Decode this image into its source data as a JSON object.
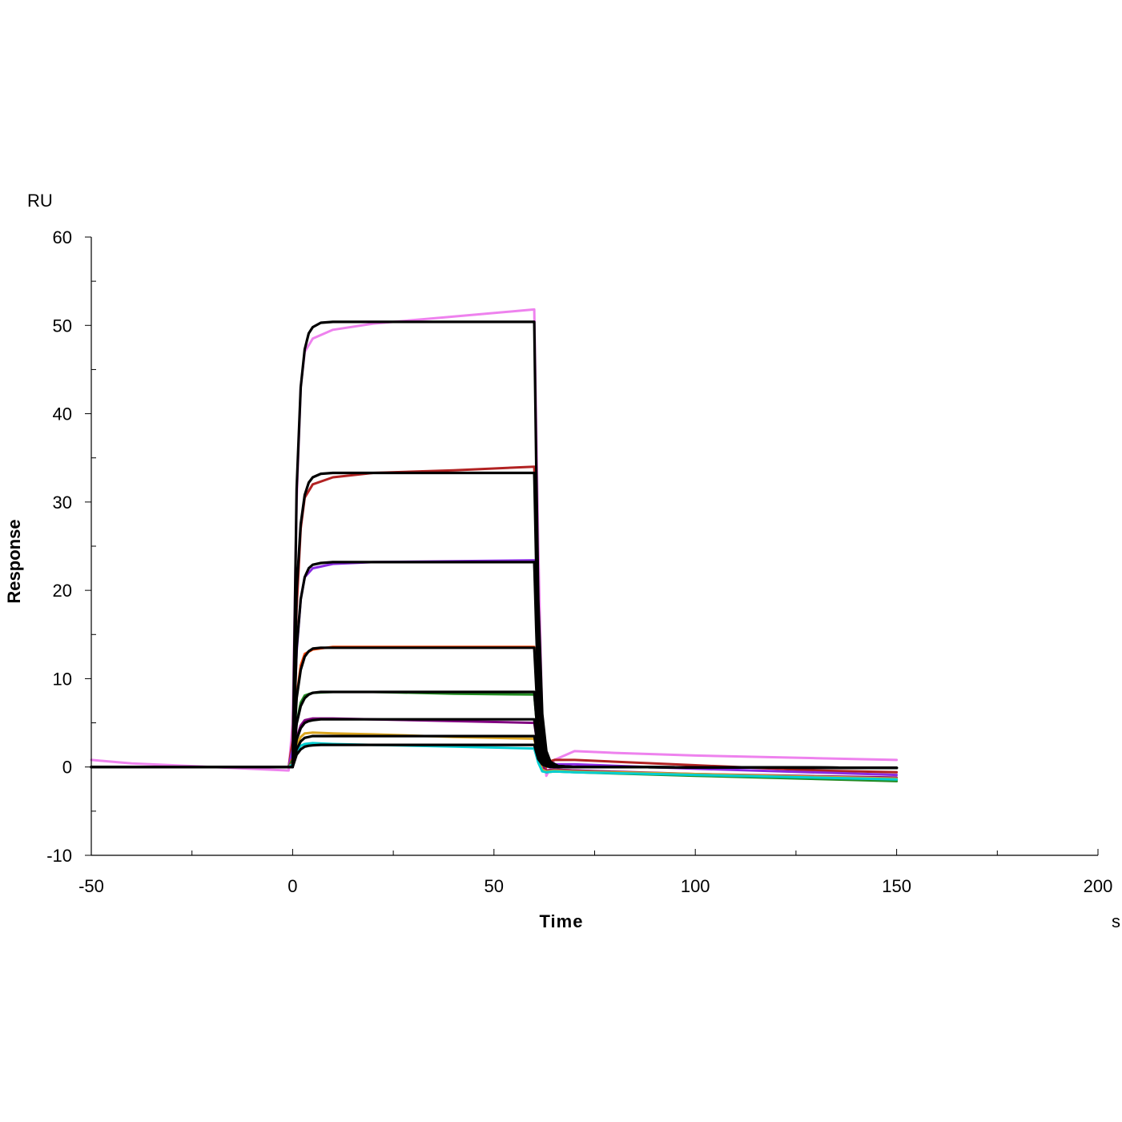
{
  "chart_data": {
    "type": "line",
    "title": "",
    "xlabel": "Time",
    "ylabel": "Response",
    "x_unit": "s",
    "y_unit": "RU",
    "xlim": [
      -50,
      200
    ],
    "ylim": [
      -10,
      60
    ],
    "x_ticks": [
      -50,
      0,
      50,
      100,
      150,
      200
    ],
    "y_ticks": [
      -10,
      0,
      10,
      20,
      30,
      40,
      50,
      60
    ],
    "x_minor_step": 25,
    "y_minor_step": 5,
    "grid": false,
    "legend": "none",
    "series": [
      {
        "color": "#ee82ee",
        "kind": "measured",
        "x": [
          -50,
          -40,
          -20,
          -1,
          0,
          1,
          2,
          3,
          5,
          10,
          20,
          40,
          60,
          61,
          62,
          63,
          65,
          70,
          80,
          100,
          130,
          150
        ],
        "y": [
          0.8,
          0.4,
          0.0,
          -0.4,
          5.0,
          30.0,
          43.0,
          47.0,
          48.5,
          49.5,
          50.2,
          51.0,
          51.8,
          25.0,
          5.0,
          -1.0,
          0.8,
          1.8,
          1.6,
          1.3,
          1.0,
          0.8
        ]
      },
      {
        "color": "#b22222",
        "kind": "measured",
        "x": [
          -50,
          -1,
          0,
          1,
          2,
          3,
          5,
          10,
          20,
          40,
          60,
          61,
          62,
          63,
          65,
          70,
          80,
          100,
          130,
          150
        ],
        "y": [
          0,
          0,
          3.0,
          18.0,
          27.0,
          30.5,
          32.0,
          32.8,
          33.3,
          33.6,
          34.0,
          16.0,
          3.0,
          0.5,
          0.8,
          0.8,
          0.6,
          0.2,
          -0.4,
          -0.6
        ]
      },
      {
        "color": "#8a2be2",
        "kind": "measured",
        "x": [
          -50,
          -1,
          0,
          1,
          2,
          3,
          5,
          10,
          20,
          40,
          60,
          61,
          62,
          63,
          65,
          70,
          100,
          150
        ],
        "y": [
          0,
          0,
          2.0,
          13.0,
          19.0,
          21.5,
          22.5,
          23.0,
          23.2,
          23.3,
          23.4,
          10.0,
          2.0,
          0.0,
          0.3,
          0.3,
          -0.2,
          -0.9
        ]
      },
      {
        "color": "#ff4500",
        "kind": "measured",
        "x": [
          -50,
          -1,
          0,
          1,
          2,
          3,
          5,
          10,
          20,
          40,
          60,
          61,
          62,
          63,
          65,
          70,
          100,
          150
        ],
        "y": [
          0,
          0,
          1.0,
          8.0,
          11.5,
          12.8,
          13.3,
          13.6,
          13.6,
          13.6,
          13.6,
          6.0,
          1.0,
          -0.4,
          -0.3,
          -0.4,
          -0.9,
          -1.3
        ]
      },
      {
        "color": "#228b22",
        "kind": "measured",
        "x": [
          -50,
          -1,
          0,
          1,
          2,
          3,
          5,
          10,
          20,
          40,
          60,
          61,
          62,
          63,
          65,
          70,
          100,
          150
        ],
        "y": [
          0,
          0,
          0.8,
          5.0,
          7.3,
          8.1,
          8.4,
          8.5,
          8.5,
          8.3,
          8.2,
          3.0,
          0.2,
          -0.6,
          -0.5,
          -0.6,
          -1.0,
          -1.6
        ]
      },
      {
        "color": "#800080",
        "kind": "measured",
        "x": [
          -50,
          -1,
          0,
          1,
          2,
          3,
          5,
          10,
          20,
          40,
          60,
          61,
          62,
          63,
          65,
          70,
          100,
          150
        ],
        "y": [
          0,
          0,
          0.5,
          3.3,
          4.7,
          5.3,
          5.5,
          5.5,
          5.4,
          5.2,
          5.0,
          2.0,
          0.0,
          -0.4,
          -0.3,
          -0.4,
          -0.8,
          -1.2
        ]
      },
      {
        "color": "#daa520",
        "kind": "measured",
        "x": [
          -50,
          -1,
          0,
          1,
          2,
          3,
          5,
          10,
          20,
          40,
          60,
          61,
          62,
          63,
          65,
          70,
          100,
          150
        ],
        "y": [
          0,
          0,
          0.4,
          2.5,
          3.4,
          3.8,
          3.9,
          3.8,
          3.7,
          3.4,
          3.2,
          1.0,
          -0.3,
          -0.5,
          -0.4,
          -0.5,
          -0.8,
          -1.3
        ]
      },
      {
        "color": "#00ced1",
        "kind": "measured",
        "x": [
          -50,
          -1,
          0,
          1,
          2,
          3,
          5,
          10,
          20,
          40,
          60,
          61,
          62,
          63,
          65,
          70,
          100,
          150
        ],
        "y": [
          0,
          0,
          0.3,
          1.7,
          2.4,
          2.6,
          2.7,
          2.6,
          2.5,
          2.3,
          2.1,
          0.5,
          -0.5,
          -0.6,
          -0.5,
          -0.6,
          -0.9,
          -1.4
        ]
      },
      {
        "color": "#000000",
        "kind": "fit",
        "x": [
          -50,
          0,
          1,
          2,
          3,
          4,
          5,
          7,
          10,
          60,
          60.5,
          61,
          62,
          63,
          64,
          66,
          70,
          150
        ],
        "y": [
          0,
          0,
          31.5,
          43.0,
          47.3,
          49.1,
          49.8,
          50.3,
          50.4,
          50.4,
          34.0,
          19.0,
          6.0,
          1.8,
          0.6,
          0.1,
          0.0,
          -0.1
        ]
      },
      {
        "color": "#000000",
        "kind": "fit",
        "x": [
          -50,
          0,
          1,
          2,
          3,
          4,
          5,
          7,
          10,
          60,
          60.5,
          61,
          62,
          63,
          64,
          66,
          70,
          150
        ],
        "y": [
          0,
          0,
          20.0,
          27.5,
          30.8,
          32.2,
          32.8,
          33.2,
          33.3,
          33.3,
          22.5,
          12.5,
          4.0,
          1.2,
          0.4,
          0.1,
          0.0,
          -0.1
        ]
      },
      {
        "color": "#000000",
        "kind": "fit",
        "x": [
          -50,
          0,
          1,
          2,
          3,
          4,
          5,
          7,
          10,
          60,
          60.5,
          61,
          62,
          63,
          64,
          66,
          70,
          150
        ],
        "y": [
          0,
          0,
          13.5,
          19.0,
          21.5,
          22.5,
          22.9,
          23.1,
          23.2,
          23.2,
          15.5,
          8.7,
          2.8,
          0.8,
          0.3,
          0.1,
          0.0,
          -0.1
        ]
      },
      {
        "color": "#000000",
        "kind": "fit",
        "x": [
          -50,
          0,
          1,
          2,
          3,
          4,
          5,
          7,
          10,
          60,
          60.5,
          61,
          62,
          63,
          64,
          66,
          70,
          150
        ],
        "y": [
          0,
          0,
          7.8,
          11.0,
          12.5,
          13.1,
          13.4,
          13.5,
          13.5,
          13.5,
          9.0,
          5.0,
          1.6,
          0.5,
          0.2,
          0.0,
          0.0,
          -0.1
        ]
      },
      {
        "color": "#000000",
        "kind": "fit",
        "x": [
          -50,
          0,
          1,
          2,
          3,
          4,
          5,
          7,
          10,
          60,
          60.5,
          61,
          62,
          63,
          64,
          66,
          70,
          150
        ],
        "y": [
          0,
          0,
          4.9,
          6.9,
          7.8,
          8.2,
          8.4,
          8.5,
          8.5,
          8.5,
          5.7,
          3.2,
          1.0,
          0.3,
          0.1,
          0.0,
          0.0,
          -0.1
        ]
      },
      {
        "color": "#000000",
        "kind": "fit",
        "x": [
          -50,
          0,
          1,
          2,
          3,
          4,
          5,
          7,
          10,
          60,
          60.5,
          61,
          62,
          63,
          64,
          66,
          70,
          150
        ],
        "y": [
          0,
          0,
          3.1,
          4.4,
          5.0,
          5.2,
          5.3,
          5.4,
          5.4,
          5.4,
          3.6,
          2.0,
          0.6,
          0.2,
          0.1,
          0.0,
          0.0,
          -0.1
        ]
      },
      {
        "color": "#000000",
        "kind": "fit",
        "x": [
          -50,
          0,
          1,
          2,
          3,
          4,
          5,
          7,
          10,
          60,
          60.5,
          61,
          62,
          63,
          64,
          66,
          70,
          150
        ],
        "y": [
          0,
          0,
          2.0,
          2.9,
          3.3,
          3.4,
          3.5,
          3.5,
          3.5,
          3.5,
          2.3,
          1.3,
          0.4,
          0.1,
          0.0,
          0.0,
          0.0,
          -0.1
        ]
      },
      {
        "color": "#000000",
        "kind": "fit",
        "x": [
          -50,
          0,
          1,
          2,
          3,
          4,
          5,
          7,
          10,
          60,
          60.5,
          61,
          62,
          63,
          64,
          66,
          70,
          150
        ],
        "y": [
          0,
          0,
          1.4,
          2.0,
          2.3,
          2.4,
          2.45,
          2.5,
          2.5,
          2.5,
          1.7,
          0.9,
          0.3,
          0.1,
          0.0,
          0.0,
          0.0,
          -0.1
        ]
      }
    ]
  }
}
